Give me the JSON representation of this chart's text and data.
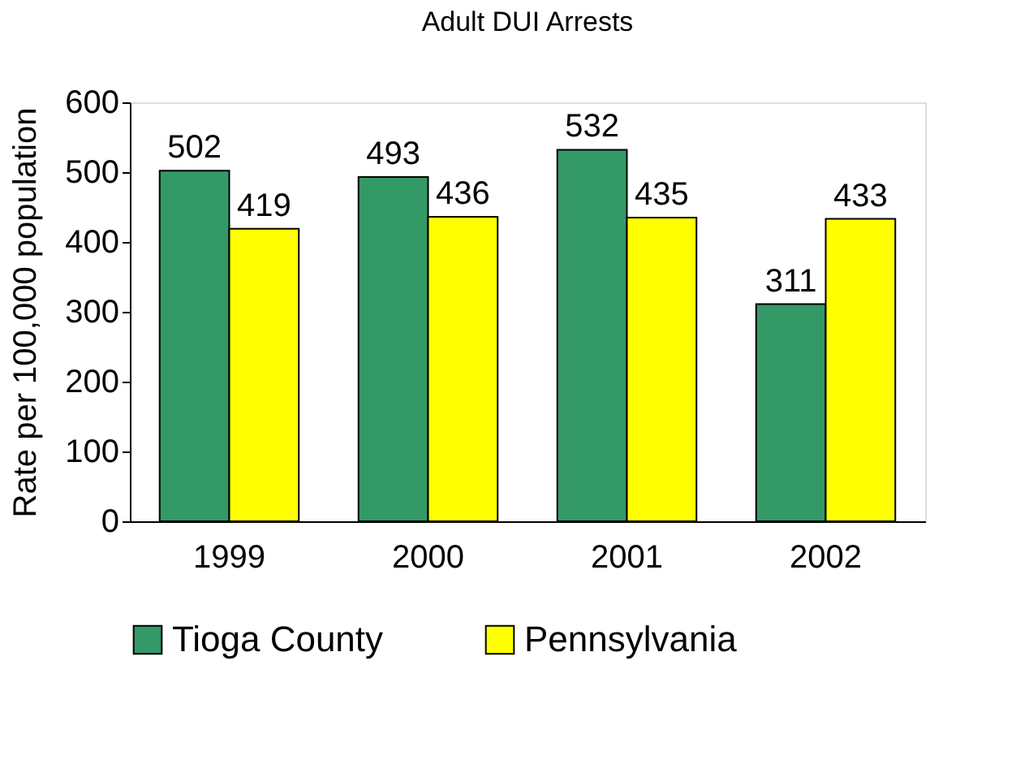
{
  "chart_data": {
    "type": "bar",
    "title": "Adult DUI Arrests",
    "ylabel": "Rate per 100,000 population",
    "categories": [
      "1999",
      "2000",
      "2001",
      "2002"
    ],
    "series": [
      {
        "name": "Tioga County",
        "color": "#339966",
        "values": [
          502,
          493,
          532,
          311
        ]
      },
      {
        "name": "Pennsylvania",
        "color": "#ffff00",
        "values": [
          419,
          436,
          435,
          433
        ]
      }
    ],
    "ylim": [
      0,
      600
    ],
    "yticks": [
      0,
      100,
      200,
      300,
      400,
      500,
      600
    ],
    "data_labels": true,
    "legend": "bottom",
    "grid": false
  }
}
